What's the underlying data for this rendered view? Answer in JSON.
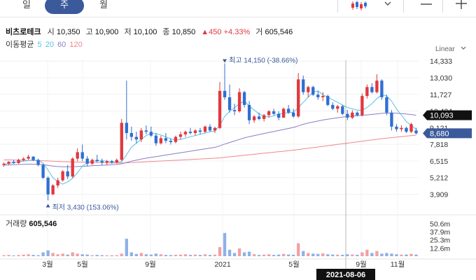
{
  "period_tabs": [
    {
      "label": "일",
      "selected": false
    },
    {
      "label": "주",
      "selected": true
    },
    {
      "label": "월",
      "selected": false
    }
  ],
  "toolbar": {
    "chart_type_icon": "candlestick-icon",
    "dropdown_icon": "chevron-down-icon",
    "minimize_icon": "minus-icon",
    "add_icon": "plus-icon"
  },
  "stock": {
    "name": "비츠로테크",
    "open_label": "시",
    "open": "10,350",
    "high_label": "고",
    "high": "10,900",
    "low_label": "저",
    "low": "10,100",
    "close_label": "종",
    "close": "10,850",
    "change": "▲450",
    "change_pct": "+4.33%",
    "volume_label": "거",
    "volume": "605,546"
  },
  "moving_average": {
    "label": "이동평균",
    "periods": [
      {
        "label": "5",
        "color": "#58c1e6"
      },
      {
        "label": "20",
        "color": "#58c1e6"
      },
      {
        "label": "60",
        "color": "#8a7cc9"
      },
      {
        "label": "120",
        "color": "#f0868d"
      }
    ]
  },
  "scale_label": "Linear",
  "colors": {
    "up": "#e0393e",
    "down": "#2f6fd1",
    "ma5": "#58c1e6",
    "ma60": "#8a7cc9",
    "ma120": "#f0868d",
    "tab_selected": "#3b5a9b",
    "current_badge": "#111111",
    "last_badge": "#3b5a9b"
  },
  "chart_data": {
    "type": "candlestick",
    "y_ticks": [
      "14,333",
      "13,030",
      "11,727",
      "10,424",
      "9,121",
      "7,818",
      "6,515",
      "5,212",
      "3,909"
    ],
    "ylim": [
      3500,
      14400
    ],
    "x_ticks": [
      "3월",
      "5월",
      "9월",
      "2021",
      "5월",
      "9월",
      "11월"
    ],
    "crosshair_date": "2021-08-06",
    "current_price_badge": "10,093",
    "last_price_badge": "8,680",
    "max_annotation": "최고 14,150 (-38.66%)",
    "min_annotation": "최저 3,430 (153.06%)",
    "volume_label": "거래량",
    "volume_value": "605,546",
    "volume_ticks": [
      "50.6m",
      "37.9m",
      "25.3m",
      "12.6m"
    ],
    "volume_ylim": [
      0,
      52
    ],
    "candles": [
      [
        6200,
        6400,
        6050,
        6300
      ],
      [
        6300,
        6500,
        6200,
        6450
      ],
      [
        6450,
        6600,
        6300,
        6350
      ],
      [
        6350,
        6700,
        6300,
        6600
      ],
      [
        6600,
        6800,
        6500,
        6700
      ],
      [
        6700,
        7000,
        6600,
        6850
      ],
      [
        6850,
        6900,
        6500,
        6600
      ],
      [
        6600,
        6700,
        6100,
        6200
      ],
      [
        6200,
        6300,
        5100,
        5200
      ],
      [
        5200,
        5300,
        3430,
        3900
      ],
      [
        3900,
        4700,
        3850,
        4600
      ],
      [
        4600,
        5200,
        4400,
        5000
      ],
      [
        5000,
        5800,
        4900,
        5700
      ],
      [
        5700,
        6200,
        5100,
        5300
      ],
      [
        5300,
        6800,
        5200,
        6700
      ],
      [
        6700,
        7500,
        6500,
        7200
      ],
      [
        7200,
        7800,
        6500,
        6700
      ],
      [
        6700,
        6900,
        6100,
        6300
      ],
      [
        6300,
        6700,
        6200,
        6600
      ],
      [
        6600,
        7000,
        6400,
        6500
      ],
      [
        6500,
        6700,
        6200,
        6400
      ],
      [
        6400,
        6600,
        6200,
        6500
      ],
      [
        6500,
        6600,
        6300,
        6400
      ],
      [
        6400,
        6700,
        6300,
        6600
      ],
      [
        6600,
        9800,
        6500,
        9500
      ],
      [
        9500,
        12800,
        8200,
        8700
      ],
      [
        8700,
        9200,
        8100,
        8400
      ],
      [
        8400,
        8800,
        7900,
        8200
      ],
      [
        8200,
        9100,
        8000,
        8900
      ],
      [
        8900,
        9300,
        8600,
        8800
      ],
      [
        8800,
        9200,
        8400,
        8500
      ],
      [
        8500,
        8700,
        7700,
        7900
      ],
      [
        7900,
        8500,
        7800,
        8300
      ],
      [
        8300,
        8700,
        7900,
        8100
      ],
      [
        8100,
        8300,
        7800,
        8000
      ],
      [
        8000,
        8500,
        7900,
        8400
      ],
      [
        8400,
        8800,
        8200,
        8600
      ],
      [
        8600,
        8900,
        8400,
        8800
      ],
      [
        8800,
        9100,
        8600,
        8700
      ],
      [
        8700,
        9000,
        8500,
        8900
      ],
      [
        8900,
        9100,
        8600,
        8800
      ],
      [
        8800,
        9300,
        8700,
        9200
      ],
      [
        9200,
        9400,
        8800,
        8900
      ],
      [
        8900,
        9200,
        8700,
        9100
      ],
      [
        9100,
        12700,
        9000,
        12000
      ],
      [
        12000,
        14150,
        11300,
        11500
      ],
      [
        11500,
        12500,
        10300,
        10500
      ],
      [
        10500,
        11000,
        10100,
        10400
      ],
      [
        10400,
        12200,
        10300,
        11900
      ],
      [
        11900,
        12000,
        10700,
        10900
      ],
      [
        10900,
        11200,
        9400,
        9700
      ],
      [
        9700,
        10100,
        9500,
        10000
      ],
      [
        10000,
        10300,
        9700,
        9800
      ],
      [
        9800,
        10200,
        9600,
        10100
      ],
      [
        10100,
        10500,
        9900,
        10400
      ],
      [
        10400,
        10600,
        10100,
        10200
      ],
      [
        10200,
        10400,
        9700,
        9900
      ],
      [
        9900,
        10700,
        9900,
        10600
      ],
      [
        10600,
        10900,
        10200,
        10300
      ],
      [
        10300,
        10600,
        9900,
        10000
      ],
      [
        10000,
        13400,
        9900,
        12900
      ],
      [
        12900,
        13200,
        11700,
        11900
      ],
      [
        11900,
        12400,
        11500,
        12300
      ],
      [
        12300,
        12400,
        11600,
        11700
      ],
      [
        11700,
        12000,
        11300,
        11500
      ],
      [
        11500,
        11900,
        11200,
        11600
      ],
      [
        11600,
        11700,
        10800,
        10900
      ],
      [
        10900,
        11100,
        10500,
        10600
      ],
      [
        10600,
        10900,
        10300,
        10800
      ],
      [
        10800,
        10900,
        10100,
        10200
      ],
      [
        10200,
        10500,
        9700,
        9900
      ],
      [
        9900,
        10500,
        9800,
        10300
      ],
      [
        10300,
        10400,
        10000,
        10100
      ],
      [
        10100,
        11800,
        10000,
        11600
      ],
      [
        11600,
        12500,
        11400,
        12300
      ],
      [
        12300,
        12600,
        11800,
        11900
      ],
      [
        11900,
        13300,
        11800,
        12800
      ],
      [
        12800,
        12900,
        11300,
        11500
      ],
      [
        11500,
        11700,
        10100,
        10300
      ],
      [
        10300,
        10500,
        8900,
        9200
      ],
      [
        9200,
        9400,
        8800,
        9000
      ],
      [
        9000,
        9300,
        8800,
        9100
      ],
      [
        9100,
        9200,
        8700,
        8800
      ],
      [
        8800,
        9500,
        8700,
        9400
      ],
      [
        8900,
        9100,
        8600,
        8680
      ]
    ],
    "volumes": [
      1.5,
      2,
      1.2,
      1.8,
      2.4,
      3,
      2,
      1.5,
      6,
      9,
      5,
      3,
      4,
      2.5,
      6,
      4,
      3,
      2.5,
      1.5,
      2,
      1.6,
      1.4,
      1.3,
      1.5,
      4,
      27,
      6,
      3.5,
      5,
      3,
      2.5,
      4,
      3,
      2,
      1.8,
      2.2,
      2.4,
      3,
      2,
      2.5,
      2,
      3,
      2,
      2.5,
      14,
      36,
      10,
      5,
      12,
      6,
      7,
      3,
      2,
      2.4,
      3,
      2,
      2.5,
      3.5,
      2.6,
      2.2,
      20,
      8,
      5,
      4,
      3.6,
      4.4,
      3,
      2.6,
      2.4,
      2.2,
      3,
      2.6,
      2.2,
      6,
      10,
      5,
      8,
      4,
      5,
      4,
      3,
      2.4,
      2.6,
      3.6,
      2.5
    ],
    "ma5": [
      6250,
      6320,
      6380,
      6450,
      6500,
      6550,
      6600,
      6550,
      6350,
      5800,
      5200,
      4900,
      4700,
      4880,
      5160,
      5600,
      6100,
      6380,
      6500,
      6520,
      6540,
      6500,
      6440,
      6420,
      6460,
      7000,
      7600,
      7900,
      8200,
      8500,
      8700,
      8650,
      8550,
      8400,
      8250,
      8150,
      8200,
      8300,
      8420,
      8500,
      8600,
      8700,
      8800,
      8850,
      9300,
      10000,
      10400,
      10700,
      11000,
      11200,
      10800,
      10500,
      10200,
      10000,
      9950,
      10050,
      10200,
      10250,
      10300,
      10320,
      10700,
      11100,
      11500,
      11900,
      12000,
      11700,
      11500,
      11300,
      11100,
      10900,
      10700,
      10600,
      10500,
      10500,
      10700,
      11000,
      11400,
      11700,
      11600,
      11200,
      10600,
      10100,
      9600,
      9300,
      9000
    ],
    "ma60": [
      6200,
      6200,
      6220,
      6240,
      6250,
      6260,
      6260,
      6250,
      6230,
      6180,
      6120,
      6080,
      6060,
      6060,
      6070,
      6080,
      6100,
      6120,
      6140,
      6160,
      6180,
      6200,
      6220,
      6240,
      6300,
      6400,
      6500,
      6580,
      6660,
      6730,
      6800,
      6860,
      6920,
      6980,
      7040,
      7100,
      7160,
      7220,
      7280,
      7340,
      7400,
      7460,
      7520,
      7580,
      7700,
      7840,
      7960,
      8080,
      8200,
      8320,
      8420,
      8500,
      8580,
      8660,
      8740,
      8820,
      8900,
      8980,
      9060,
      9140,
      9260,
      9380,
      9480,
      9560,
      9640,
      9720,
      9780,
      9840,
      9900,
      9950,
      10000,
      10030,
      10060,
      10090,
      10120,
      10160,
      10200,
      10240,
      10260,
      10260,
      10250,
      10220,
      10190,
      10150,
      10093
    ],
    "ma120": [
      6600,
      6600,
      6590,
      6580,
      6570,
      6560,
      6550,
      6540,
      6530,
      6520,
      6500,
      6480,
      6460,
      6450,
      6440,
      6430,
      6420,
      6410,
      6400,
      6390,
      6380,
      6370,
      6360,
      6360,
      6360,
      6370,
      6390,
      6410,
      6430,
      6450,
      6470,
      6490,
      6510,
      6530,
      6550,
      6570,
      6590,
      6610,
      6630,
      6650,
      6670,
      6690,
      6710,
      6730,
      6760,
      6800,
      6840,
      6880,
      6920,
      6960,
      7000,
      7040,
      7080,
      7120,
      7160,
      7200,
      7240,
      7280,
      7320,
      7360,
      7410,
      7460,
      7510,
      7560,
      7610,
      7660,
      7710,
      7760,
      7810,
      7860,
      7910,
      7960,
      8010,
      8060,
      8110,
      8160,
      8210,
      8260,
      8300,
      8340,
      8380,
      8420,
      8460,
      8500,
      8540
    ]
  }
}
